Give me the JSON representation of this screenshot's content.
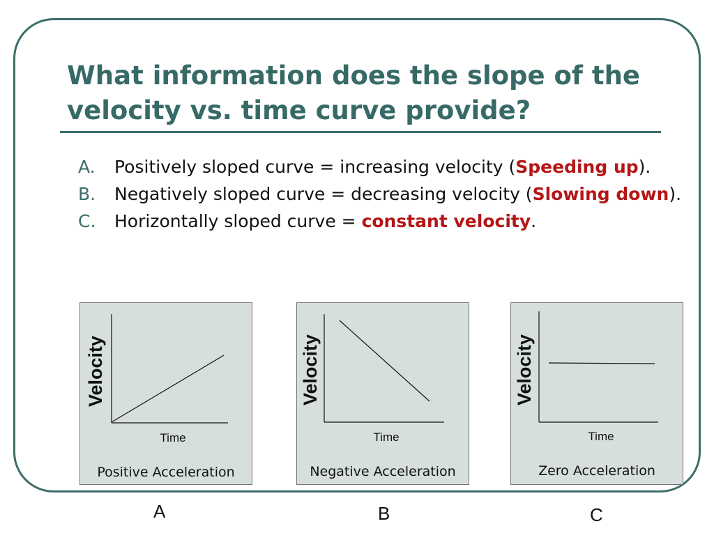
{
  "slide": {
    "title": "What information does the slope of the velocity vs. time curve provide?",
    "items": [
      {
        "marker": "A.",
        "before": "Positively sloped curve = increasing velocity (",
        "highlight": "Speeding up",
        "after": ")."
      },
      {
        "marker": "B.",
        "before": "Negatively sloped curve = decreasing velocity (",
        "highlight": "Slowing down",
        "after": ")."
      },
      {
        "marker": "C.",
        "before": "Horizontally sloped curve = ",
        "highlight": "constant velocity",
        "after": "."
      }
    ],
    "highlight_color": "#b51616",
    "title_color": "#376a66"
  },
  "graphs": [
    {
      "y_label": "Velocity",
      "x_label": "Time",
      "caption": "Positive Acceleration",
      "letter": "A",
      "trend": "increasing"
    },
    {
      "y_label": "Velocity",
      "x_label": "Time",
      "caption": "Negative Acceleration",
      "letter": "B",
      "trend": "decreasing"
    },
    {
      "y_label": "Velocity",
      "x_label": "Time",
      "caption": "Zero Acceleration",
      "letter": "C",
      "trend": "constant"
    }
  ]
}
